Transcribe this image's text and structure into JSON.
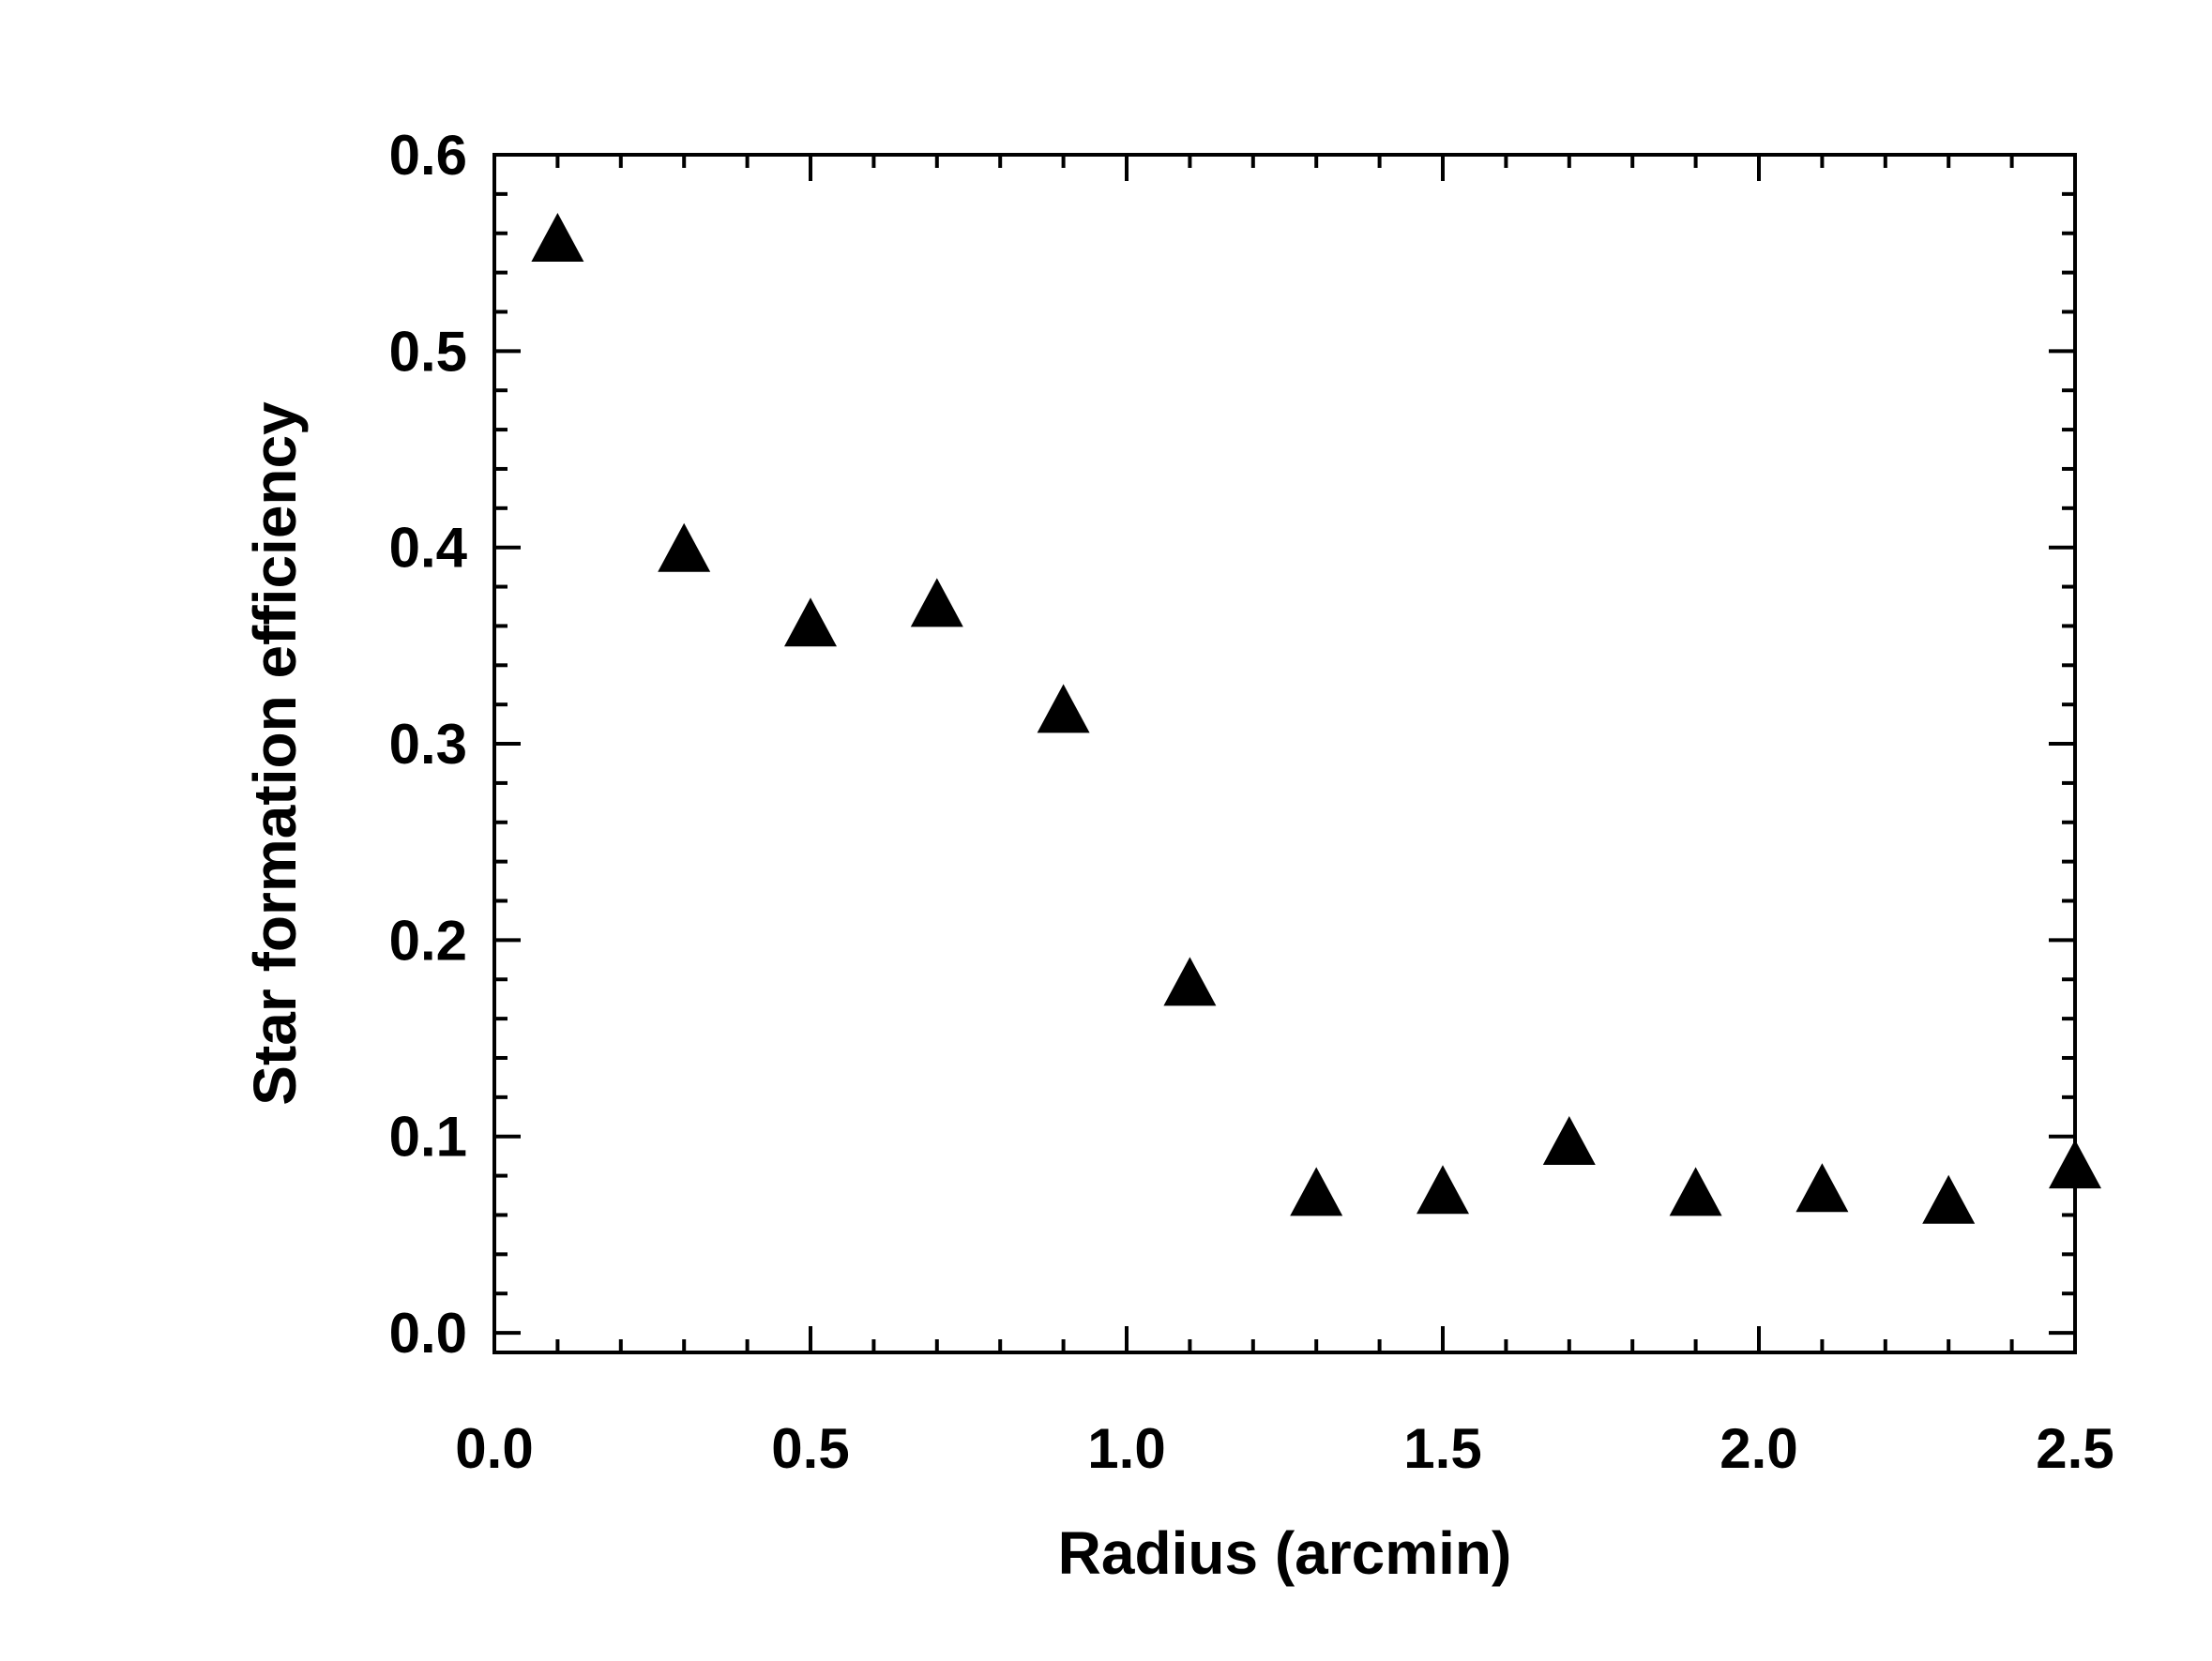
{
  "chart_data": {
    "type": "scatter",
    "title": "",
    "xlabel": "Radius (arcmin)",
    "ylabel": "Star formation efficiency",
    "xlim": [
      0.0,
      2.5
    ],
    "ylim": [
      -0.01,
      0.6
    ],
    "x_ticks": [
      "0.0",
      "0.5",
      "1.0",
      "1.5",
      "2.0",
      "2.5"
    ],
    "y_ticks": [
      "0.0",
      "0.1",
      "0.2",
      "0.3",
      "0.4",
      "0.5",
      "0.6"
    ],
    "x_tick_values": [
      0.0,
      0.5,
      1.0,
      1.5,
      2.0,
      2.5
    ],
    "y_tick_values": [
      0.0,
      0.1,
      0.2,
      0.3,
      0.4,
      0.5,
      0.6
    ],
    "grid": false,
    "legend": "none",
    "marker": "filled-triangle",
    "marker_color": "#000000",
    "points": [
      {
        "x": 0.1,
        "y": 0.555
      },
      {
        "x": 0.3,
        "y": 0.397
      },
      {
        "x": 0.5,
        "y": 0.359
      },
      {
        "x": 0.7,
        "y": 0.369
      },
      {
        "x": 0.9,
        "y": 0.315
      },
      {
        "x": 1.1,
        "y": 0.176
      },
      {
        "x": 1.3,
        "y": 0.069
      },
      {
        "x": 1.5,
        "y": 0.07
      },
      {
        "x": 1.7,
        "y": 0.095
      },
      {
        "x": 1.9,
        "y": 0.069
      },
      {
        "x": 2.1,
        "y": 0.071
      },
      {
        "x": 2.3,
        "y": 0.065
      },
      {
        "x": 2.5,
        "y": 0.083
      }
    ]
  }
}
